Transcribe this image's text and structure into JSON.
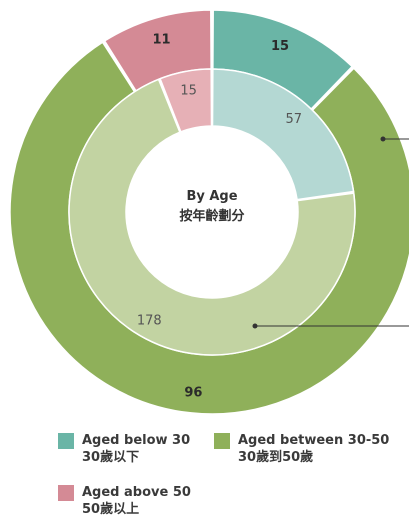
{
  "colors": {
    "below30_outer": "#6ab5a6",
    "below30_inner": "#b4d8d3",
    "between30_50_outer": "#8fb05a",
    "between30_50_inner": "#c2d3a2",
    "above50_outer": "#d48a95",
    "above50_inner": "#e6b0b6",
    "pointer_line": "#333333"
  },
  "chart_data": {
    "type": "donut",
    "center_label": [
      "By Age",
      "按年齡劃分"
    ],
    "series": [
      {
        "ring": "outer",
        "values": [
          15,
          96,
          11
        ],
        "labels": [
          "15",
          "96",
          "11"
        ]
      },
      {
        "ring": "inner",
        "values": [
          57,
          178,
          15
        ],
        "labels": [
          "57",
          "178",
          "15"
        ]
      }
    ],
    "categories": [
      {
        "en": "Aged below 30",
        "zh": "30歲以下"
      },
      {
        "en": "Aged between 30-50",
        "zh": "30歲到50歲"
      },
      {
        "en": "Aged above 50",
        "zh": "50歲以上"
      }
    ]
  },
  "legend": [
    {
      "en": "Aged below 30",
      "zh": "30歲以下"
    },
    {
      "en": "Aged between 30-50",
      "zh": "30歲到50歲"
    },
    {
      "en": "Aged above 50",
      "zh": "50歲以上"
    }
  ]
}
